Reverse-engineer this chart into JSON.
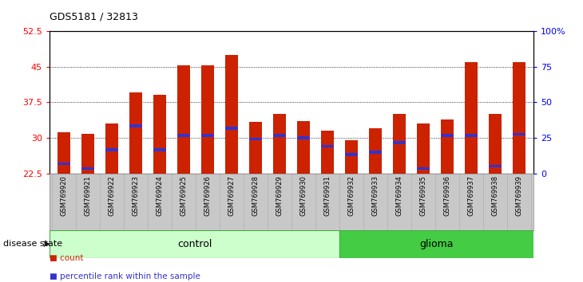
{
  "title": "GDS5181 / 32813",
  "samples": [
    "GSM769920",
    "GSM769921",
    "GSM769922",
    "GSM769923",
    "GSM769924",
    "GSM769925",
    "GSM769926",
    "GSM769927",
    "GSM769928",
    "GSM769929",
    "GSM769930",
    "GSM769931",
    "GSM769932",
    "GSM769933",
    "GSM769934",
    "GSM769935",
    "GSM769936",
    "GSM769937",
    "GSM769938",
    "GSM769939"
  ],
  "bar_heights": [
    31.2,
    30.9,
    33.0,
    39.5,
    39.0,
    45.2,
    45.3,
    47.5,
    33.3,
    35.0,
    33.5,
    31.5,
    29.5,
    32.0,
    35.0,
    33.0,
    33.8,
    46.0,
    35.0,
    46.0
  ],
  "blue_positions": [
    24.5,
    23.5,
    27.5,
    32.5,
    27.5,
    30.5,
    30.5,
    32.0,
    29.8,
    30.5,
    30.0,
    28.3,
    26.5,
    27.0,
    29.0,
    23.5,
    30.5,
    30.5,
    24.0,
    30.8
  ],
  "control_count": 12,
  "glioma_count": 8,
  "ylim_left": [
    22.5,
    52.5
  ],
  "ylim_right": [
    0,
    100
  ],
  "bar_color": "#cc2200",
  "blue_color": "#3333cc",
  "control_color": "#ccffcc",
  "glioma_color": "#44cc44",
  "xtick_bg_color": "#c8c8c8",
  "bar_width": 0.55,
  "legend_count_label": "count",
  "legend_pct_label": "percentile rank within the sample",
  "disease_state_label": "disease state",
  "control_label": "control",
  "glioma_label": "glioma",
  "yticks_left": [
    22.5,
    30.0,
    37.5,
    45.0,
    52.5
  ],
  "yticks_right": [
    0,
    25,
    50,
    75,
    100
  ],
  "ytick_right_labels": [
    "0",
    "25",
    "50",
    "75",
    "100%"
  ]
}
